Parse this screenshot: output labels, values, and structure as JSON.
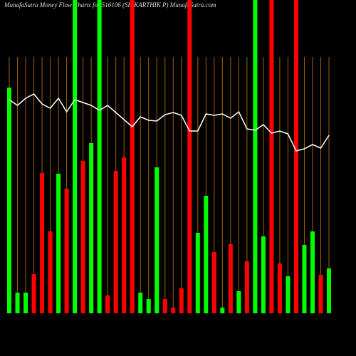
{
  "chart_data": {
    "type": "bar",
    "title": "MunafaSutra  Money Flow  Charts for 516106 (SH.KARTHIK P) MunafaSutra.com",
    "values": [
      317,
      29,
      29,
      55,
      197,
      115,
      196,
      175,
      440,
      214,
      239,
      440,
      25,
      200,
      219,
      440,
      29,
      20,
      205,
      20,
      8,
      35,
      440,
      113,
      165,
      86,
      8,
      97,
      31,
      73,
      440,
      108,
      440,
      70,
      52,
      440,
      96,
      115,
      54,
      63
    ],
    "colors": [
      "#00ff00",
      "#00ff00",
      "#00ff00",
      "#ff0000",
      "#ff0000",
      "#ff0000",
      "#00ff00",
      "#ff0000",
      "#00ff00",
      "#ff0000",
      "#00ff00",
      "#00ff00",
      "#ff0000",
      "#ff0000",
      "#ff0000",
      "#ff0000",
      "#00ff00",
      "#00ff00",
      "#00ff00",
      "#ff0000",
      "#ff0000",
      "#ff0000",
      "#ff0000",
      "#00ff00",
      "#00ff00",
      "#ff0000",
      "#00ff00",
      "#ff0000",
      "#00ff00",
      "#ff0000",
      "#00ff00",
      "#00ff00",
      "#ff0000",
      "#ff0000",
      "#00ff00",
      "#ff0000",
      "#00ff00",
      "#00ff00",
      "#ff0000",
      "#00ff00"
    ],
    "line": {
      "color": "#ffffff",
      "values": [
        300,
        292,
        302,
        308,
        294,
        288,
        302,
        283,
        300,
        296,
        292,
        285,
        292,
        282,
        272,
        262,
        276,
        271,
        270,
        279,
        282,
        278,
        256,
        256,
        280,
        278,
        280,
        274,
        283,
        259,
        257,
        265,
        253,
        256,
        252,
        228,
        231,
        237,
        232,
        250
      ]
    },
    "grid_color": "#a0600a",
    "ylim": [
      0,
      440
    ]
  }
}
